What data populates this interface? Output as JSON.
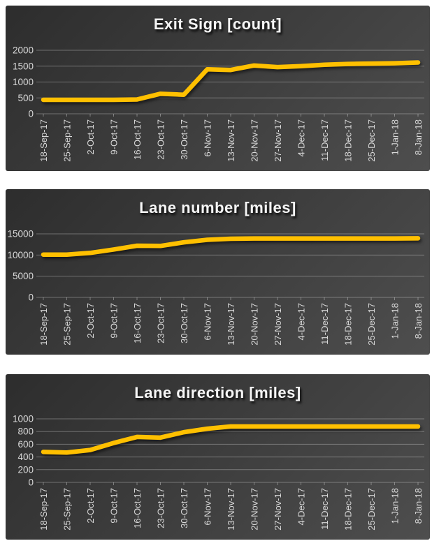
{
  "page": {
    "background": "#ffffff"
  },
  "chart_data": [
    {
      "type": "line",
      "title": "Exit Sign [count]",
      "categories": [
        "18-Sep-17",
        "25-Sep-17",
        "2-Oct-17",
        "9-Oct-17",
        "16-Oct-17",
        "23-Oct-17",
        "30-Oct-17",
        "6-Nov-17",
        "13-Nov-17",
        "20-Nov-17",
        "27-Nov-17",
        "4-Dec-17",
        "11-Dec-17",
        "18-Dec-17",
        "25-Dec-17",
        "1-Jan-18",
        "8-Jan-18"
      ],
      "values": [
        440,
        440,
        440,
        440,
        450,
        630,
        600,
        1400,
        1380,
        1520,
        1470,
        1500,
        1545,
        1570,
        1580,
        1590,
        1615
      ],
      "yticks": [
        0,
        500,
        1000,
        1500,
        2000
      ],
      "ylim": [
        0,
        2000
      ],
      "xlabel": "",
      "ylabel": "",
      "grid": true,
      "legend": "none",
      "line_color": "#FFC000",
      "label_color": "#d9d9d9",
      "title_color": "#f5f5f5",
      "background_from": "#2d2d2d",
      "background_to": "#4e4e4e"
    },
    {
      "type": "line",
      "title": "Lane number [miles]",
      "categories": [
        "18-Sep-17",
        "25-Sep-17",
        "2-Oct-17",
        "9-Oct-17",
        "16-Oct-17",
        "23-Oct-17",
        "30-Oct-17",
        "6-Nov-17",
        "13-Nov-17",
        "20-Nov-17",
        "27-Nov-17",
        "4-Dec-17",
        "11-Dec-17",
        "18-Dec-17",
        "25-Dec-17",
        "1-Jan-18",
        "8-Jan-18"
      ],
      "values": [
        10100,
        10100,
        10500,
        11300,
        12200,
        12150,
        13000,
        13600,
        13850,
        13900,
        13900,
        13900,
        13900,
        13900,
        13900,
        13900,
        13950
      ],
      "yticks": [
        0,
        5000,
        10000,
        15000
      ],
      "ylim": [
        0,
        15000
      ],
      "xlabel": "",
      "ylabel": "",
      "grid": true,
      "legend": "none",
      "line_color": "#FFC000",
      "label_color": "#d9d9d9",
      "title_color": "#f5f5f5",
      "background_from": "#2d2d2d",
      "background_to": "#4e4e4e"
    },
    {
      "type": "line",
      "title": "Lane direction [miles]",
      "categories": [
        "18-Sep-17",
        "25-Sep-17",
        "2-Oct-17",
        "9-Oct-17",
        "16-Oct-17",
        "23-Oct-17",
        "30-Oct-17",
        "6-Nov-17",
        "13-Nov-17",
        "20-Nov-17",
        "27-Nov-17",
        "4-Dec-17",
        "11-Dec-17",
        "18-Dec-17",
        "25-Dec-17",
        "1-Jan-18",
        "8-Jan-18"
      ],
      "values": [
        480,
        470,
        510,
        620,
        715,
        705,
        790,
        845,
        880,
        880,
        880,
        880,
        880,
        880,
        880,
        880,
        880
      ],
      "yticks": [
        0,
        200,
        400,
        600,
        800,
        1000
      ],
      "ylim": [
        0,
        1000
      ],
      "xlabel": "",
      "ylabel": "",
      "grid": true,
      "legend": "none",
      "line_color": "#FFC000",
      "label_color": "#d9d9d9",
      "title_color": "#f5f5f5",
      "background_from": "#2d2d2d",
      "background_to": "#4e4e4e"
    }
  ]
}
